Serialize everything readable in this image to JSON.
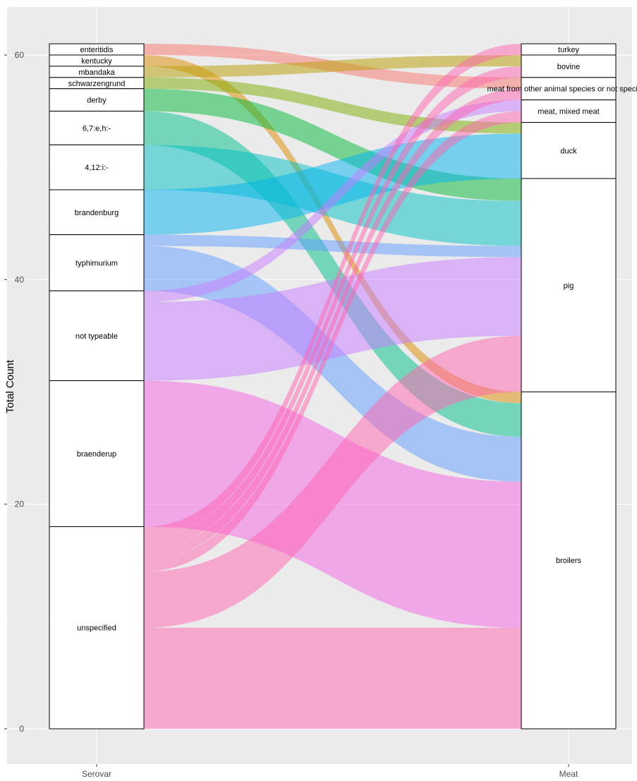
{
  "chart_data": {
    "type": "alluvial",
    "title": "",
    "xlabel": "",
    "ylabel": "Total Count",
    "ylim": [
      -3,
      64
    ],
    "yticks": [
      0,
      20,
      40,
      60
    ],
    "axes": [
      "Serovar",
      "Meat"
    ],
    "grid": true,
    "serovar_strata": [
      {
        "name": "enteritidis",
        "color": "#F8766D"
      },
      {
        "name": "kentucky",
        "color": "#DE8C00"
      },
      {
        "name": "mbandaka",
        "color": "#B79F00"
      },
      {
        "name": "schwarzengrund",
        "color": "#7CAE00"
      },
      {
        "name": "derby",
        "color": "#00BA38"
      },
      {
        "name": "6,7:e,h:-",
        "color": "#00C08B"
      },
      {
        "name": "4,12:i:-",
        "color": "#00BFC4"
      },
      {
        "name": "brandenburg",
        "color": "#00B4F0"
      },
      {
        "name": "typhimurium",
        "color": "#619CFF"
      },
      {
        "name": "not typeable",
        "color": "#C77CFF"
      },
      {
        "name": "braenderup",
        "color": "#F564E3"
      },
      {
        "name": "unspecified",
        "color": "#FF64B0"
      }
    ],
    "meat_strata": [
      "turkey",
      "bovine",
      "meat from other animal species or not specified",
      "meat, mixed meat",
      "duck",
      "pig",
      "broilers"
    ],
    "flows": [
      {
        "from": "enteritidis",
        "to": "meat from other animal species or not specified",
        "count": 1
      },
      {
        "from": "kentucky",
        "to": "broilers",
        "count": 1
      },
      {
        "from": "mbandaka",
        "to": "bovine",
        "count": 1
      },
      {
        "from": "schwarzengrund",
        "to": "duck",
        "count": 1
      },
      {
        "from": "derby",
        "to": "pig",
        "count": 2
      },
      {
        "from": "6,7:e,h:-",
        "to": "broilers",
        "count": 3
      },
      {
        "from": "4,12:i:-",
        "to": "pig",
        "count": 4
      },
      {
        "from": "brandenburg",
        "to": "duck",
        "count": 4
      },
      {
        "from": "typhimurium",
        "to": "pig",
        "count": 1
      },
      {
        "from": "typhimurium",
        "to": "broilers",
        "count": 4
      },
      {
        "from": "not typeable",
        "to": "meat, mixed meat",
        "count": 1
      },
      {
        "from": "not typeable",
        "to": "pig",
        "count": 7
      },
      {
        "from": "braenderup",
        "to": "broilers",
        "count": 13
      },
      {
        "from": "unspecified",
        "to": "turkey",
        "count": 1
      },
      {
        "from": "unspecified",
        "to": "bovine",
        "count": 1
      },
      {
        "from": "unspecified",
        "to": "meat from other animal species or not specified",
        "count": 1
      },
      {
        "from": "unspecified",
        "to": "meat, mixed meat",
        "count": 1
      },
      {
        "from": "unspecified",
        "to": "pig",
        "count": 5
      },
      {
        "from": "unspecified",
        "to": "broilers",
        "count": 9
      }
    ]
  }
}
